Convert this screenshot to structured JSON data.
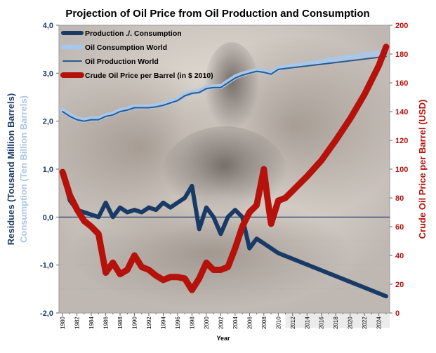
{
  "chart_data": {
    "type": "line",
    "title": "Projection of Oil Price from Oil Production and Consumption",
    "xlabel": "Year",
    "ylabel_left": "Residues (Tousand Million Barrels)",
    "ylabel_left2": "Consumption (Ten Billion Barrels)",
    "ylabel_right": "Crude Oil Price per Barrel (USD)",
    "x_ticks": [
      "1980",
      "1982",
      "1984",
      "1986",
      "1988",
      "1990",
      "1992",
      "1994",
      "1996",
      "1998",
      "2000",
      "2002",
      "2004",
      "2006",
      "2008",
      "2010",
      "2012",
      "2014",
      "2016",
      "2018",
      "2020",
      "2022",
      "2024"
    ],
    "y_left_ticks": [
      "4,0",
      "3,0",
      "2,0",
      "1,0",
      "0,0",
      "-1,0",
      "-2,0"
    ],
    "y_right_ticks": [
      "200",
      "180",
      "160",
      "140",
      "120",
      "100",
      "80",
      "60",
      "40",
      "20",
      "0"
    ],
    "xlim": [
      1979.5,
      2025.5
    ],
    "ylim_left": [
      -2,
      4
    ],
    "ylim_right": [
      0,
      200
    ],
    "projection_start": 2011,
    "grid": false,
    "legend_position": "top-left",
    "colors": {
      "production_minus_consumption": "#1a3a66",
      "consumption": "#a9c7e8",
      "production": "#2a5a8c",
      "price": "#b5120c",
      "left_axis": "#1a3a66",
      "left_axis2": "#a9c7e8",
      "right_axis": "#b5120c",
      "zero_line": "#1a3a66"
    },
    "series": [
      {
        "name": "Production ./. Consumption",
        "axis": "left",
        "x": [
          1980,
          1981,
          1982,
          1983,
          1984,
          1985,
          1986,
          1987,
          1988,
          1989,
          1990,
          1991,
          1992,
          1993,
          1994,
          1995,
          1996,
          1997,
          1998,
          1999,
          2000,
          2001,
          2002,
          2003,
          2004,
          2005,
          2006,
          2007,
          2008,
          2009,
          2010,
          2025
        ],
        "y": [
          0.95,
          0.35,
          0.15,
          0.1,
          0.05,
          0.0,
          0.3,
          0.0,
          0.2,
          0.1,
          0.15,
          0.1,
          0.2,
          0.15,
          0.3,
          0.2,
          0.3,
          0.4,
          0.65,
          -0.25,
          0.2,
          0.0,
          -0.35,
          0.0,
          0.15,
          0.0,
          -0.65,
          -0.45,
          -0.55,
          -0.65,
          -0.75,
          -1.65
        ]
      },
      {
        "name": "Oil Consumption World",
        "axis": "left",
        "x": [
          1980,
          1981,
          1982,
          1983,
          1984,
          1985,
          1986,
          1987,
          1988,
          1989,
          1990,
          1991,
          1992,
          1993,
          1994,
          1995,
          1996,
          1997,
          1998,
          1999,
          2000,
          2001,
          2002,
          2003,
          2004,
          2005,
          2006,
          2007,
          2008,
          2009,
          2010,
          2025
        ],
        "y": [
          2.22,
          2.12,
          2.05,
          2.02,
          2.05,
          2.05,
          2.12,
          2.15,
          2.22,
          2.25,
          2.3,
          2.3,
          2.3,
          2.32,
          2.35,
          2.4,
          2.45,
          2.55,
          2.6,
          2.62,
          2.7,
          2.72,
          2.72,
          2.82,
          2.92,
          2.98,
          3.02,
          3.06,
          3.04,
          3.0,
          3.1,
          3.45
        ]
      },
      {
        "name": "Oil Production World",
        "axis": "left",
        "x": [
          1980,
          1981,
          1982,
          1983,
          1984,
          1985,
          1986,
          1987,
          1988,
          1989,
          1990,
          1991,
          1992,
          1993,
          1994,
          1995,
          1996,
          1997,
          1998,
          1999,
          2000,
          2001,
          2002,
          2003,
          2004,
          2005,
          2006,
          2007,
          2008,
          2009,
          2010,
          2025
        ],
        "y": [
          2.2,
          2.1,
          2.03,
          2.0,
          2.03,
          2.03,
          2.1,
          2.13,
          2.2,
          2.23,
          2.28,
          2.28,
          2.28,
          2.3,
          2.33,
          2.38,
          2.43,
          2.53,
          2.58,
          2.6,
          2.68,
          2.7,
          2.7,
          2.8,
          2.9,
          2.96,
          3.0,
          3.04,
          3.02,
          2.98,
          3.08,
          3.35
        ]
      },
      {
        "name": "Crude Oil Price per Barrel (in $ 2010)",
        "axis": "right",
        "x": [
          1980,
          1981,
          1982,
          1983,
          1984,
          1985,
          1986,
          1987,
          1988,
          1989,
          1990,
          1991,
          1992,
          1993,
          1994,
          1995,
          1996,
          1997,
          1998,
          1999,
          2000,
          2001,
          2002,
          2003,
          2004,
          2005,
          2006,
          2007,
          2008,
          2008.5,
          2009,
          2010,
          2011,
          2012,
          2014,
          2016,
          2018,
          2020,
          2022,
          2024,
          2025
        ],
        "y": [
          98,
          82,
          72,
          64,
          60,
          55,
          28,
          35,
          27,
          30,
          40,
          32,
          30,
          26,
          23,
          25,
          25,
          24,
          16,
          24,
          35,
          30,
          30,
          32,
          45,
          60,
          70,
          75,
          100,
          80,
          62,
          78,
          80,
          85,
          95,
          106,
          120,
          135,
          152,
          172,
          185
        ]
      }
    ]
  }
}
